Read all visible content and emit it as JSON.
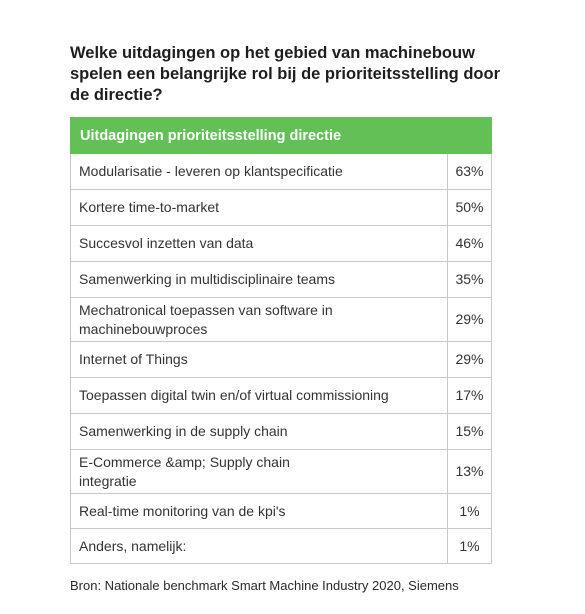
{
  "question": "Welke uitdagingen op het gebied van machinebouw spelen een belangrijke rol bij de prioriteitsstelling door de directie?",
  "table": {
    "header": "Uitdagingen prioriteitsstelling directie",
    "rows": [
      {
        "label": "Modularisatie - leveren op klantspecificatie",
        "value": "63%"
      },
      {
        "label": "Kortere time-to-market",
        "value": "50%"
      },
      {
        "label": "Succesvol inzetten van data",
        "value": "46%"
      },
      {
        "label": "Samenwerking in multidisciplinaire teams",
        "value": "35%"
      },
      {
        "label": "Mechatronical toepassen van software in machinebouwproces",
        "value": "29%"
      },
      {
        "label": "Internet of Things",
        "value": "29%"
      },
      {
        "label": "Toepassen digital twin en/of virtual commissioning",
        "value": "17%"
      },
      {
        "label": "Samenwerking in de supply chain",
        "value": "15%"
      },
      {
        "label": "E-Commerce &amp; Supply chain integratie",
        "value": "13%"
      },
      {
        "label": "Real-time monitoring van de kpi's",
        "value": "1%"
      },
      {
        "label": "Anders, namelijk:",
        "value": "1%"
      }
    ]
  },
  "source": "Bron: Nationale benchmark Smart Machine Industry 2020, Siemens"
}
